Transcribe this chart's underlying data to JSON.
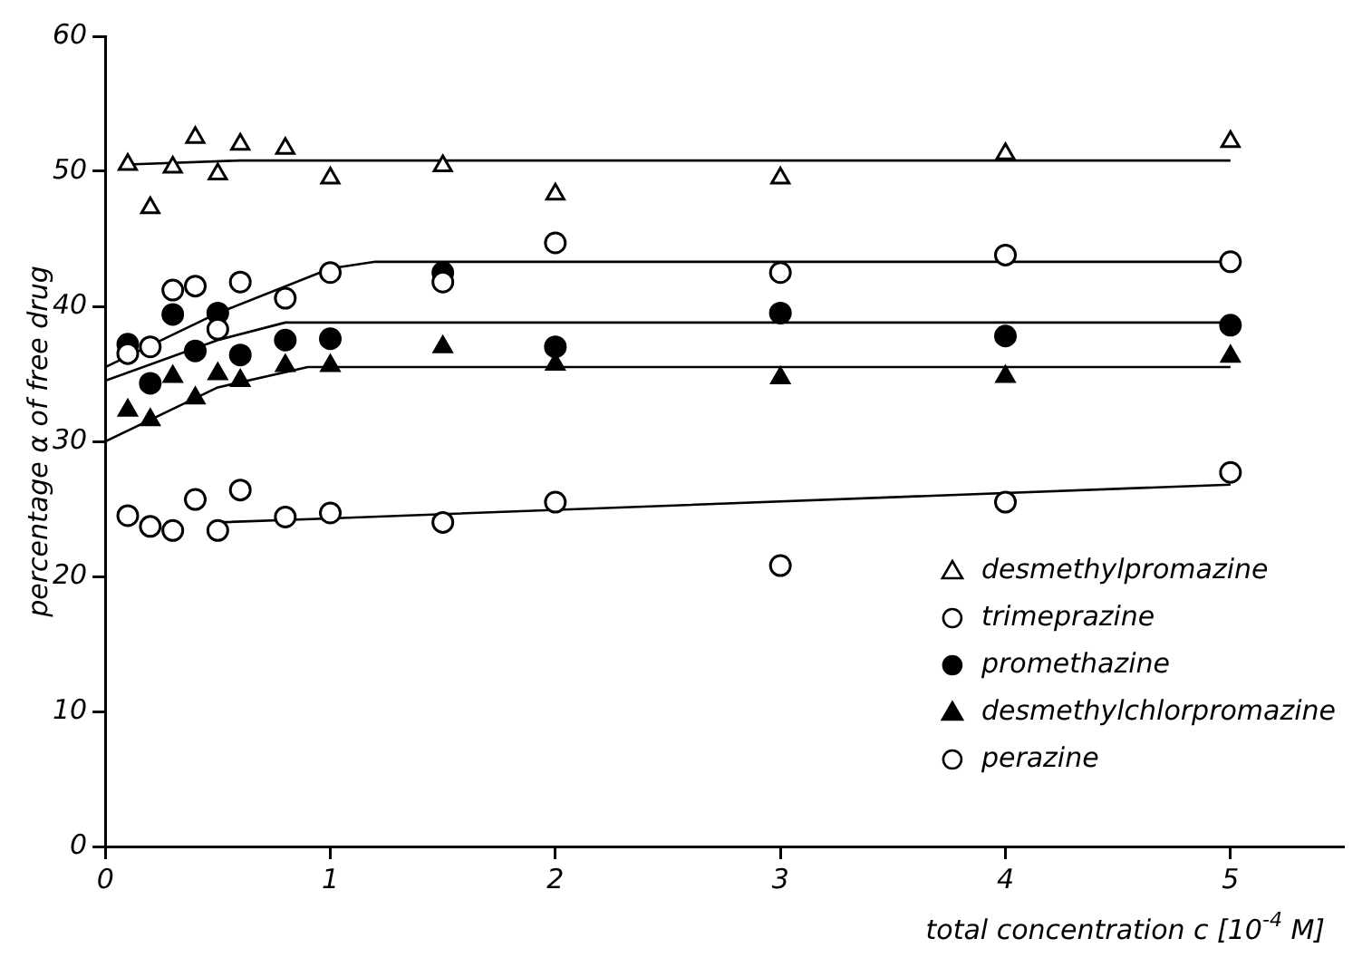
{
  "chart_data": {
    "type": "scatter",
    "xlabel": "total concentration c [10$^{-4}$ M]",
    "ylabel": "percentage α of free drug",
    "xlim": [
      0,
      5.5
    ],
    "xticks": [
      0,
      1,
      2,
      3,
      4,
      5
    ],
    "ylim": [
      0,
      60
    ],
    "yticks": [
      0,
      10,
      20,
      30,
      40,
      50,
      60
    ],
    "grid": false,
    "legend": "bottom right",
    "x": [
      0.1,
      0.2,
      0.3,
      0.4,
      0.5,
      0.6,
      0.8,
      1,
      1.5,
      2,
      3,
      4,
      5
    ],
    "series": [
      {
        "name": "desmethylpromazine",
        "color": "#ffffff",
        "marker": "triangle",
        "values": [
          50.5,
          47.3,
          50.3,
          52.5,
          49.8,
          52,
          51.7,
          49.5,
          50.4,
          48.3,
          49.5,
          51.3,
          52.2
        ]
      },
      {
        "name": "trimeprazine",
        "color": "#ffffff",
        "marker": "circle",
        "values": [
          36.5,
          37,
          41.2,
          41.5,
          38.3,
          41.8,
          40.6,
          42.5,
          41.8,
          44.7,
          42.5,
          43.8,
          43.3
        ]
      },
      {
        "name": "promethazine",
        "color": "#000000",
        "marker": "circle",
        "values": [
          37.2,
          34.3,
          39.4,
          36.7,
          39.5,
          36.4,
          37.5,
          37.6,
          42.5,
          37,
          39.5,
          37.8,
          38.6
        ]
      },
      {
        "name": "desmethylchlorpromazine",
        "color": "#000000",
        "marker": "triangle",
        "values": [
          32.3,
          31.6,
          34.8,
          33.2,
          35,
          34.5,
          35.6,
          35.6,
          37,
          35.7,
          34.7,
          34.8,
          36.3
        ]
      },
      {
        "name": "perazine",
        "color": "#ffffff",
        "marker": "circle",
        "values": [
          24.5,
          23.7,
          23.4,
          25.7,
          23.4,
          26.4,
          24.4,
          24.7,
          24,
          25.5,
          20.8,
          25.5,
          27.7
        ]
      },
      {
        "type": "line",
        "color": "#000000",
        "marker": "none",
        "x": [
          0.1,
          0.6,
          5
        ],
        "values": [
          50.5,
          50.8,
          50.8
        ]
      },
      {
        "type": "line",
        "color": "#000000",
        "marker": "none",
        "x": [
          0,
          0.5,
          1,
          1.2,
          5
        ],
        "values": [
          35.5,
          39.5,
          42.8,
          43.3,
          43.3
        ]
      },
      {
        "type": "line",
        "color": "#000000",
        "marker": "none",
        "x": [
          0,
          0.5,
          0.8,
          5
        ],
        "values": [
          34.5,
          37.5,
          38.8,
          38.8
        ]
      },
      {
        "type": "line",
        "color": "#000000",
        "marker": "none",
        "x": [
          0,
          0.5,
          0.9,
          5
        ],
        "values": [
          30,
          34,
          35.5,
          35.5
        ]
      },
      {
        "type": "line",
        "color": "#000000",
        "marker": "none",
        "x": [
          0.5,
          1,
          5
        ],
        "values": [
          24,
          24.3,
          26.8
        ]
      }
    ]
  }
}
